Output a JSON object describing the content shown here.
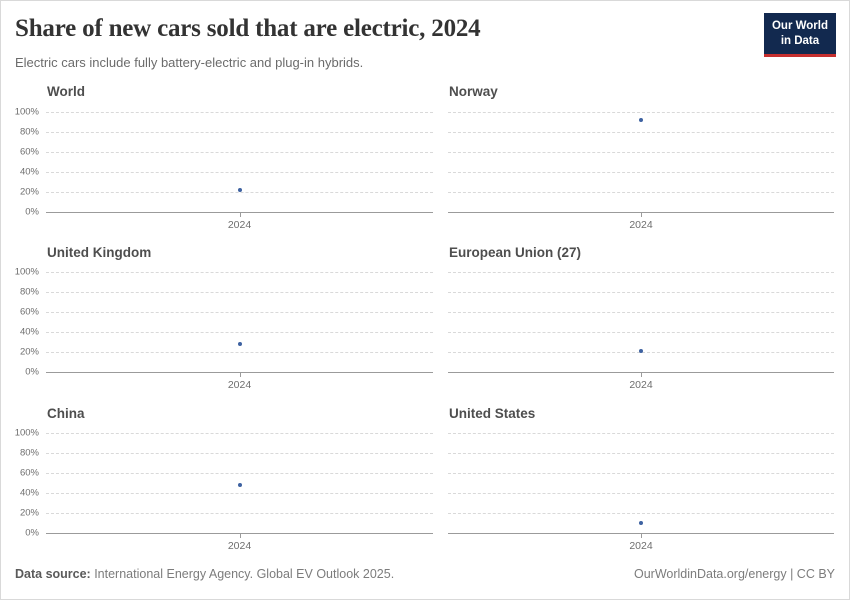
{
  "header": {
    "title": "Share of new cars sold that are electric, 2024",
    "subtitle": "Electric cars include fully battery-electric and plug-in hybrids.",
    "logo_line1": "Our World",
    "logo_line2": "in Data"
  },
  "chart_data": {
    "type": "scatter",
    "title": "Share of new cars sold that are electric, 2024",
    "subtitle": "Electric cars include fully battery-electric and plug-in hybrids.",
    "layout": "2x3 small multiples, shared axes, y labels on left column only",
    "unit": "%",
    "ylim": [
      0,
      100
    ],
    "y_ticks": [
      "100%",
      "80%",
      "60%",
      "40%",
      "20%",
      "0%"
    ],
    "x_tick_label": "2024",
    "grid": "horizontal dashed",
    "legend": "none",
    "point_color": "#3e62a1",
    "panels": [
      {
        "title": "World",
        "x": 2024,
        "value_pct": 22
      },
      {
        "title": "Norway",
        "x": 2024,
        "value_pct": 92
      },
      {
        "title": "United Kingdom",
        "x": 2024,
        "value_pct": 28
      },
      {
        "title": "European Union (27)",
        "x": 2024,
        "value_pct": 21
      },
      {
        "title": "China",
        "x": 2024,
        "value_pct": 48
      },
      {
        "title": "United States",
        "x": 2024,
        "value_pct": 10
      }
    ]
  },
  "footer": {
    "source_label": "Data source:",
    "source_text": " International Energy Agency. Global EV Outlook 2025.",
    "right_text": "OurWorldinData.org/energy | CC BY"
  },
  "colors": {
    "point": "#3e62a1",
    "logo_navy": "#12294f",
    "logo_red": "#c62f2f",
    "gridline": "#d9d9d9",
    "axis": "#9b9b9b"
  }
}
